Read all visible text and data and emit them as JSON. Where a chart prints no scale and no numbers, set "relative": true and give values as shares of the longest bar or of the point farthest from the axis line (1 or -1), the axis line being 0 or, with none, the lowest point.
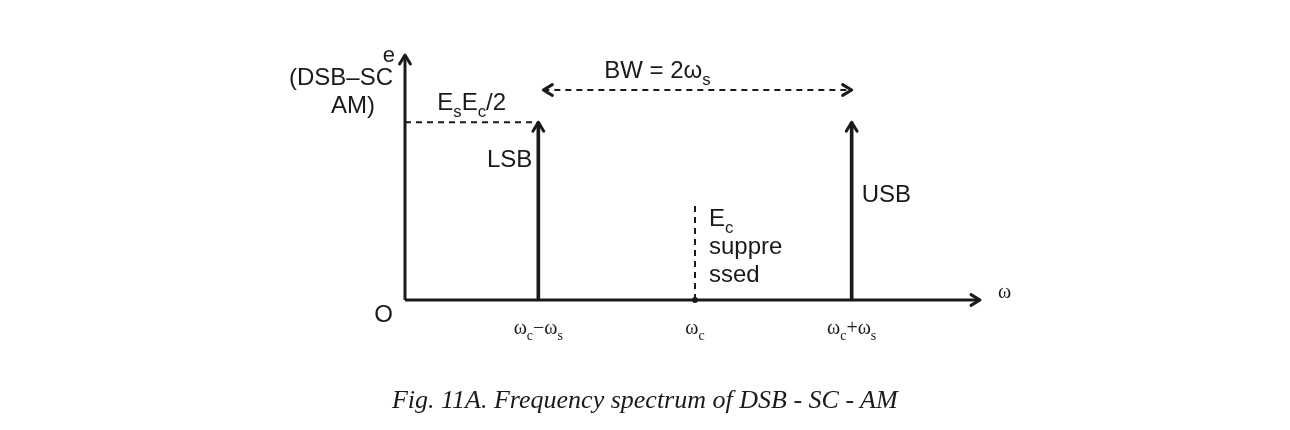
{
  "chart_data": {
    "type": "bar",
    "relative": true,
    "xlabel": "ω",
    "ylabel": "e",
    "categories": [
      "ω$_{c}$−ω$_{s}$",
      "ω$_{c}$",
      "ω$_{c}$+ω$_{s}$"
    ],
    "values": [
      1,
      null,
      1
    ],
    "color": "#1a1a1a",
    "legend": false,
    "ref_lines": [
      {
        "axis": "y",
        "value": 1,
        "label": "E$_{s}$E$_{c}$/2",
        "line_style": "dashed",
        "color": "#1a1a1a"
      },
      {
        "axis": "x",
        "value": "ω$_{c}$",
        "label": "E$_{c}$ suppre ssed",
        "line_style": "dashed",
        "color": "#1a1a1a"
      }
    ],
    "annotations": [
      "(DSB–SC AM)",
      "O",
      {
        "text": "LSB",
        "x": "ω$_{c}$−ω$_{s}$",
        "y": 0.75
      },
      {
        "text": "USB",
        "x": "ω$_{c}$+ω$_{s}$",
        "y": 0.55
      },
      "BW = 2ω$_{s}$",
      "Fig. 11A. Frequency spectrum of DSB - SC - AM"
    ]
  }
}
